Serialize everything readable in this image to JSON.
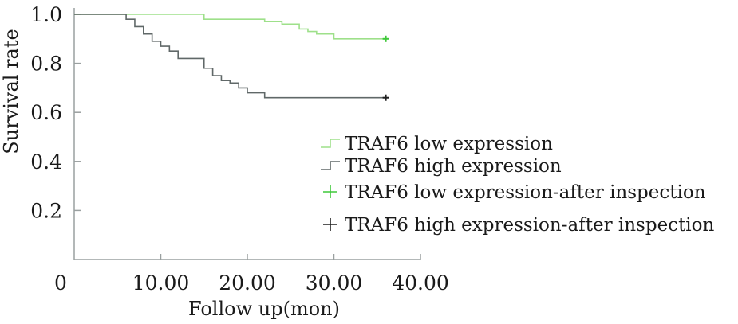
{
  "chart_data": {
    "type": "line",
    "title": "",
    "xlabel": "Follow up(mon)",
    "ylabel": "Survival rate",
    "xlim": [
      0,
      40
    ],
    "ylim": [
      0,
      1.0
    ],
    "x_tick_labels": [
      "0",
      "10.00",
      "20.00",
      "30.00",
      "40.00"
    ],
    "x_tick_values": [
      0,
      10,
      20,
      30,
      40
    ],
    "y_tick_labels": [
      "0.2",
      "0.4",
      "0.6",
      "0.8",
      "1.0"
    ],
    "y_tick_values": [
      0.2,
      0.4,
      0.6,
      0.8,
      1.0
    ],
    "grid": false,
    "legend_position": "center-right",
    "series": [
      {
        "name": "TRAF6 low expression",
        "color": "#9ee08a",
        "step": true,
        "x": [
          0,
          15,
          22,
          24,
          26,
          27,
          28,
          30,
          36
        ],
        "y": [
          1.0,
          0.98,
          0.97,
          0.96,
          0.94,
          0.93,
          0.92,
          0.9,
          0.9
        ]
      },
      {
        "name": "TRAF6 high expression",
        "color": "#606868",
        "step": true,
        "x": [
          0,
          6,
          7,
          8,
          9,
          10,
          11,
          12,
          15,
          16,
          17,
          18,
          19,
          20,
          22,
          36
        ],
        "y": [
          1.0,
          0.98,
          0.95,
          0.92,
          0.89,
          0.87,
          0.85,
          0.82,
          0.78,
          0.75,
          0.73,
          0.72,
          0.7,
          0.68,
          0.66,
          0.66
        ]
      },
      {
        "name": "TRAF6 low expression-after inspection",
        "color": "#3fc83a",
        "marker": "+",
        "x": [
          36
        ],
        "y": [
          0.9
        ]
      },
      {
        "name": "TRAF6 high expression-after inspection",
        "color": "#202020",
        "marker": "+",
        "x": [
          36
        ],
        "y": [
          0.66
        ]
      }
    ]
  }
}
